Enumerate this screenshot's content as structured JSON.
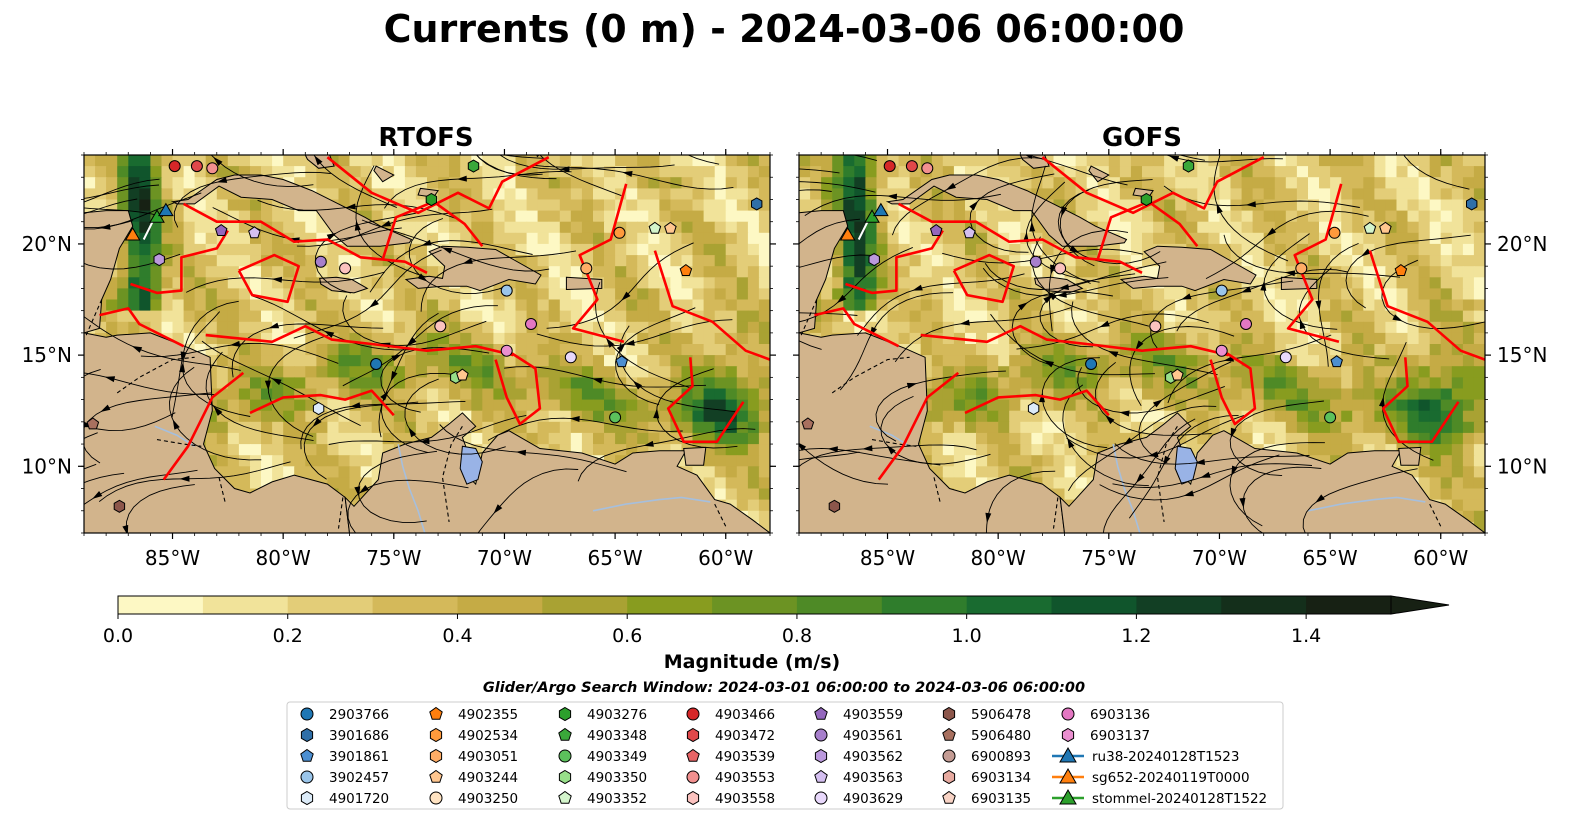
{
  "figure": {
    "title": "Currents (0 m) - 2024-03-06 06:00:00",
    "search_window": "Glider/Argo Search Window: 2024-03-01 06:00:00 to 2024-03-06 06:00:00"
  },
  "chart_data": [
    {
      "type": "heatmap",
      "title": "RTOFS",
      "xlim": [
        -89,
        -58
      ],
      "ylim": [
        7,
        24
      ],
      "xticks": [
        -85,
        -80,
        -75,
        -70,
        -65,
        -60
      ],
      "xtick_labels": [
        "85°W",
        "80°W",
        "75°W",
        "70°W",
        "65°W",
        "60°W"
      ],
      "yticks": [
        10,
        15,
        20
      ],
      "ytick_labels": [
        "10°N",
        "15°N",
        "20°N"
      ],
      "ytick_side": "left",
      "overlays": [
        "streamlines",
        "EEZ boundaries",
        "coastlines"
      ]
    },
    {
      "type": "heatmap",
      "title": "GOFS",
      "xlim": [
        -89,
        -58
      ],
      "ylim": [
        7,
        24
      ],
      "xticks": [
        -85,
        -80,
        -75,
        -70,
        -65,
        -60
      ],
      "xtick_labels": [
        "85°W",
        "80°W",
        "75°W",
        "70°W",
        "65°W",
        "60°W"
      ],
      "yticks": [
        10,
        15,
        20
      ],
      "ytick_labels": [
        "10°N",
        "15°N",
        "20°N"
      ],
      "ytick_side": "right",
      "overlays": [
        "streamlines",
        "EEZ boundaries",
        "coastlines"
      ]
    }
  ],
  "colorbar": {
    "label": "Magnitude (m/s)",
    "min": 0.0,
    "max": 1.5,
    "step": 0.1,
    "extend": "max",
    "ticks": [
      0.0,
      0.2,
      0.4,
      0.6,
      0.8,
      1.0,
      1.2,
      1.4
    ],
    "tick_labels": [
      "0.0",
      "0.2",
      "0.4",
      "0.6",
      "0.8",
      "1.0",
      "1.2",
      "1.4"
    ],
    "colors": [
      "#fdf8c4",
      "#f1e39a",
      "#e3cd78",
      "#d4b95a",
      "#c5ab45",
      "#a9a233",
      "#889c1f",
      "#6c9323",
      "#4e8a26",
      "#2f7d2c",
      "#196b30",
      "#10552c",
      "#123f24",
      "#142f1b",
      "#172114"
    ]
  },
  "colors": {
    "land": "#d2b48c",
    "lake": "#99b3e6",
    "river": "#a6bfdd",
    "eez": "#ff0000",
    "streamline": "#000000"
  },
  "legend": [
    {
      "label": "2903766",
      "marker": "circle",
      "color": "#1f77b4"
    },
    {
      "label": "3901686",
      "marker": "hexagon",
      "color": "#2f6fa8"
    },
    {
      "label": "3901861",
      "marker": "pentagon",
      "color": "#4c8fd1"
    },
    {
      "label": "3902457",
      "marker": "circle",
      "color": "#9ac5ea"
    },
    {
      "label": "4901720",
      "marker": "hexagon",
      "color": "#dcebf8"
    },
    {
      "label": "4902355",
      "marker": "pentagon",
      "color": "#ff7f0e"
    },
    {
      "label": "4902534",
      "marker": "hexagon",
      "color": "#ff9a3c"
    },
    {
      "label": "4903051",
      "marker": "hexagon",
      "color": "#ffad66"
    },
    {
      "label": "4903244",
      "marker": "pentagon",
      "color": "#ffc68f"
    },
    {
      "label": "4903250",
      "marker": "circle",
      "color": "#ffe3c2"
    },
    {
      "label": "4903276",
      "marker": "hexagon",
      "color": "#2ca02c"
    },
    {
      "label": "4903348",
      "marker": "pentagon",
      "color": "#3aa83a"
    },
    {
      "label": "4903349",
      "marker": "circle",
      "color": "#5cc15c"
    },
    {
      "label": "4903350",
      "marker": "hexagon",
      "color": "#98df8a"
    },
    {
      "label": "4903352",
      "marker": "pentagon",
      "color": "#d4f5cc"
    },
    {
      "label": "4903466",
      "marker": "circle",
      "color": "#d62728"
    },
    {
      "label": "4903472",
      "marker": "hexagon",
      "color": "#e0484a"
    },
    {
      "label": "4903539",
      "marker": "pentagon",
      "color": "#e86466"
    },
    {
      "label": "4903553",
      "marker": "circle",
      "color": "#f2908f"
    },
    {
      "label": "4903558",
      "marker": "hexagon",
      "color": "#fbc2bf"
    },
    {
      "label": "4903559",
      "marker": "pentagon",
      "color": "#9467bd"
    },
    {
      "label": "4903561",
      "marker": "circle",
      "color": "#a77fcc"
    },
    {
      "label": "4903562",
      "marker": "hexagon",
      "color": "#bb99dd"
    },
    {
      "label": "4903563",
      "marker": "pentagon",
      "color": "#d4bff0"
    },
    {
      "label": "4903629",
      "marker": "circle",
      "color": "#e8d8fb"
    },
    {
      "label": "5906478",
      "marker": "hexagon",
      "color": "#8c564b"
    },
    {
      "label": "5906480",
      "marker": "pentagon",
      "color": "#a8705f"
    },
    {
      "label": "6900893",
      "marker": "circle",
      "color": "#c49c94"
    },
    {
      "label": "6903134",
      "marker": "hexagon",
      "color": "#e7aaa0"
    },
    {
      "label": "6903135",
      "marker": "pentagon",
      "color": "#f8d3c5"
    },
    {
      "label": "6903136",
      "marker": "circle",
      "color": "#e377c2"
    },
    {
      "label": "6903137",
      "marker": "hexagon",
      "color": "#ea8fd0"
    },
    {
      "label": "ru38-20240128T1523",
      "marker": "triangle-line",
      "color": "#1f77b4"
    },
    {
      "label": "sg652-20240119T0000",
      "marker": "triangle-line",
      "color": "#ff7f0e"
    },
    {
      "label": "stommel-20240128T1522",
      "marker": "triangle-line",
      "color": "#2ca02c"
    }
  ]
}
